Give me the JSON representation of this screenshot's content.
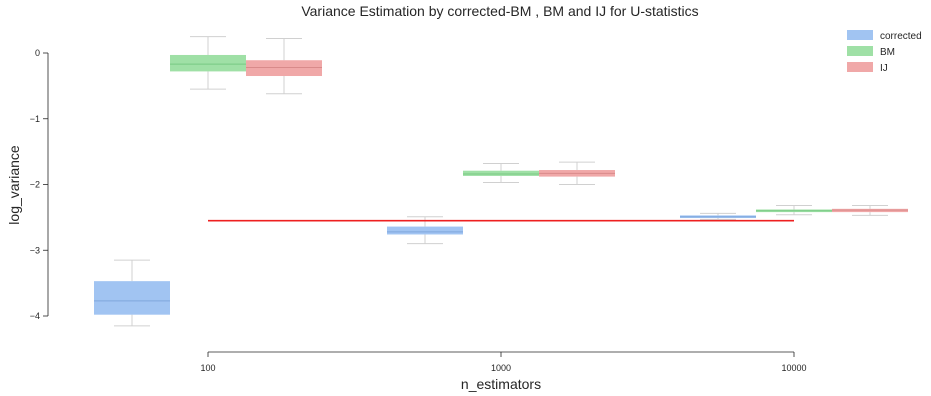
{
  "chart_data": {
    "type": "boxplot",
    "title": "Variance Estimation by corrected-BM , BM and IJ for U-statistics",
    "xlabel": "n_estimators",
    "ylabel": "log_variance",
    "x_scale": "log",
    "xlim": [
      50,
      20000
    ],
    "ylim": [
      -4.3,
      0.5
    ],
    "y_ticks": [
      0,
      -1,
      -2,
      -3,
      -4
    ],
    "y_tick_labels": [
      "0",
      "−1",
      "−2",
      "−3",
      "−4"
    ],
    "x_ticks": [
      100,
      1000,
      10000
    ],
    "x_tick_labels": [
      "100",
      "1000",
      "10000"
    ],
    "grid": false,
    "legend_position": "top-right",
    "reference_line": {
      "y": -2.55,
      "x_start": 100,
      "x_end": 10000,
      "color": "#ee2020"
    },
    "series": [
      {
        "name": "corrected",
        "color": "#a1c4f2",
        "median_color": "#7fa6dc",
        "boxes": [
          {
            "x": 100,
            "min": -4.15,
            "q1": -3.98,
            "median": -3.77,
            "q3": -3.47,
            "max": -3.15
          },
          {
            "x": 1000,
            "min": -2.9,
            "q1": -2.76,
            "median": -2.72,
            "q3": -2.64,
            "max": -2.49
          },
          {
            "x": 10000,
            "min": -2.53,
            "q1": -2.51,
            "median": -2.49,
            "q3": -2.47,
            "max": -2.44
          }
        ]
      },
      {
        "name": "BM",
        "color": "#9fe0a6",
        "median_color": "#78c983",
        "boxes": [
          {
            "x": 100,
            "min": -0.55,
            "q1": -0.28,
            "median": -0.17,
            "q3": -0.03,
            "max": 0.25
          },
          {
            "x": 1000,
            "min": -1.97,
            "q1": -1.87,
            "median": -1.84,
            "q3": -1.79,
            "max": -1.68
          },
          {
            "x": 10000,
            "min": -2.46,
            "q1": -2.42,
            "median": -2.4,
            "q3": -2.38,
            "max": -2.32
          }
        ]
      },
      {
        "name": "IJ",
        "color": "#f0a8a8",
        "median_color": "#d98a8a",
        "boxes": [
          {
            "x": 100,
            "min": -0.62,
            "q1": -0.35,
            "median": -0.22,
            "q3": -0.11,
            "max": 0.22
          },
          {
            "x": 1000,
            "min": -2.0,
            "q1": -1.88,
            "median": -1.83,
            "q3": -1.78,
            "max": -1.66
          },
          {
            "x": 10000,
            "min": -2.47,
            "q1": -2.42,
            "median": -2.39,
            "q3": -2.37,
            "max": -2.32
          }
        ]
      }
    ]
  }
}
